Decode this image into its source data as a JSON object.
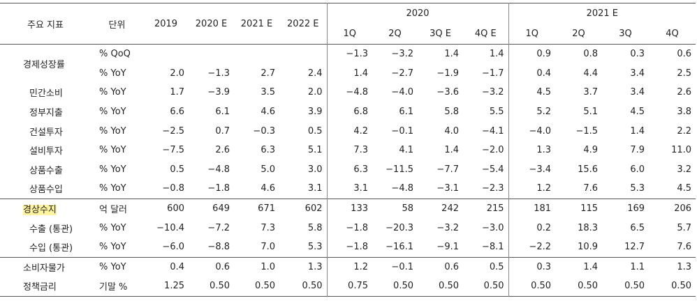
{
  "header": {
    "label": "주요 지표",
    "unit": "단위",
    "years": [
      "2019",
      "2020 E",
      "2021 E",
      "2022 E"
    ],
    "groups": [
      {
        "title": "2020",
        "quarters": [
          "1Q",
          "2Q",
          "3Q E",
          "4Q E"
        ]
      },
      {
        "title": "2021 E",
        "quarters": [
          "1Q",
          "2Q",
          "3Q",
          "4Q"
        ]
      }
    ]
  },
  "sections": [
    {
      "rows": [
        {
          "label": "경제성장률",
          "unit": "% QoQ",
          "quarters": [
            [
              "−1.3",
              "−3.2",
              "1.4",
              "1.4"
            ],
            [
              "0.9",
              "0.8",
              "0.3",
              "0.6"
            ]
          ]
        },
        {
          "unit": "% YoY",
          "annual": [
            "2.0",
            "−1.3",
            "2.7",
            "2.4"
          ],
          "quarters": [
            [
              "1.4",
              "−2.7",
              "−1.9",
              "−1.7"
            ],
            [
              "0.4",
              "4.4",
              "3.4",
              "2.5"
            ]
          ]
        },
        {
          "label": "민간소비",
          "unit": "% YoY",
          "annual": [
            "1.7",
            "−3.9",
            "3.5",
            "2.0"
          ],
          "quarters": [
            [
              "−4.8",
              "−4.0",
              "−3.6",
              "−3.2"
            ],
            [
              "4.5",
              "3.7",
              "3.4",
              "2.6"
            ]
          ]
        },
        {
          "label": "정부지출",
          "unit": "% YoY",
          "annual": [
            "6.6",
            "6.1",
            "4.6",
            "3.9"
          ],
          "quarters": [
            [
              "6.8",
              "6.1",
              "5.8",
              "5.5"
            ],
            [
              "5.2",
              "5.1",
              "4.5",
              "3.8"
            ]
          ]
        },
        {
          "label": "건설투자",
          "unit": "% YoY",
          "annual": [
            "−2.5",
            "0.7",
            "−0.3",
            "0.5"
          ],
          "quarters": [
            [
              "4.2",
              "−0.1",
              "4.0",
              "−4.1"
            ],
            [
              "−4.0",
              "−1.5",
              "1.4",
              "2.2"
            ]
          ]
        },
        {
          "label": "설비투자",
          "unit": "% YoY",
          "annual": [
            "−7.5",
            "2.6",
            "6.3",
            "5.1"
          ],
          "quarters": [
            [
              "7.3",
              "4.1",
              "1.4",
              "−2.0"
            ],
            [
              "1.3",
              "4.9",
              "7.9",
              "11.0"
            ]
          ]
        },
        {
          "label": "상품수출",
          "unit": "% YoY",
          "annual": [
            "0.5",
            "−4.8",
            "5.0",
            "3.0"
          ],
          "quarters": [
            [
              "6.3",
              "−11.5",
              "−7.7",
              "−5.4"
            ],
            [
              "−3.4",
              "15.6",
              "6.0",
              "3.2"
            ]
          ]
        },
        {
          "label": "상품수입",
          "unit": "% YoY",
          "annual": [
            "−0.8",
            "−1.8",
            "4.6",
            "3.1"
          ],
          "quarters": [
            [
              "3.1",
              "−4.8",
              "−3.1",
              "−2.3"
            ],
            [
              "1.2",
              "7.6",
              "5.3",
              "4.5"
            ]
          ]
        }
      ]
    },
    {
      "rows": [
        {
          "label": "경상수지",
          "unit": "억 달러",
          "annual": [
            "600",
            "649",
            "671",
            "602"
          ],
          "quarters": [
            [
              "133",
              "58",
              "242",
              "215"
            ],
            [
              "181",
              "115",
              "169",
              "206"
            ]
          ]
        },
        {
          "label": "수출 (통관)",
          "unit": "% YoY",
          "annual": [
            "−10.4",
            "−7.2",
            "7.3",
            "5.8"
          ],
          "quarters": [
            [
              "−1.8",
              "−20.3",
              "−3.2",
              "−3.0"
            ],
            [
              "0.2",
              "18.3",
              "6.5",
              "5.7"
            ]
          ]
        },
        {
          "label": "수입 (통관)",
          "unit": "% YoY",
          "annual": [
            "−6.0",
            "−8.8",
            "7.0",
            "5.3"
          ],
          "quarters": [
            [
              "−1.8",
              "−16.1",
              "−9.1",
              "−8.1"
            ],
            [
              "−2.2",
              "10.9",
              "12.7",
              "7.6"
            ]
          ]
        }
      ]
    },
    {
      "rows": [
        {
          "label": "소비자물가",
          "unit": "% YoY",
          "annual": [
            "0.4",
            "0.6",
            "1.0",
            "1.3"
          ],
          "quarters": [
            [
              "1.2",
              "−0.1",
              "0.6",
              "0.5"
            ],
            [
              "0.3",
              "1.4",
              "1.1",
              "1.3"
            ]
          ]
        },
        {
          "label": "정책금리",
          "unit": "기말 %",
          "annual": [
            "1.25",
            "0.50",
            "0.50",
            "0.50"
          ],
          "quarters": [
            [
              "0.75",
              "0.50",
              "0.50",
              "0.50"
            ],
            [
              "0.50",
              "0.50",
              "0.50",
              "0.50"
            ]
          ]
        }
      ]
    }
  ]
}
